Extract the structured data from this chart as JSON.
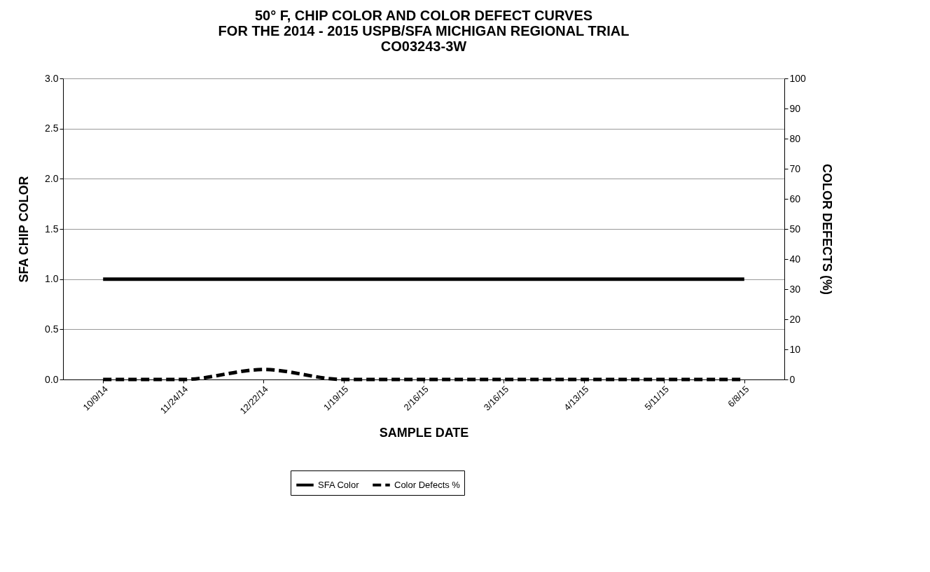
{
  "chart_data": {
    "type": "line",
    "title": "50° F, CHIP COLOR AND COLOR DEFECT CURVES\nFOR THE 2014 - 2015 USPB/SFA MICHIGAN REGIONAL TRIAL\nCO03243-3W",
    "xlabel": "SAMPLE DATE",
    "ylabel": "SFA CHIP COLOR",
    "y2label": "COLOR DEFECTS (%)",
    "categories": [
      "10/9/14",
      "11/24/14",
      "12/22/14",
      "1/19/15",
      "2/16/15",
      "3/16/15",
      "4/13/15",
      "5/11/15",
      "6/8/15"
    ],
    "series": [
      {
        "name": "SFA Color",
        "color": "#000000",
        "line_style": "solid",
        "values": [
          1.0,
          1.0,
          1.0,
          1.0,
          1.0,
          1.0,
          1.0,
          1.0,
          1.0
        ]
      },
      {
        "name": "Color Defects %",
        "color": "#000000",
        "line_style": "dashed",
        "axis": "y2",
        "values": [
          0,
          0,
          3.3,
          0,
          0,
          0,
          0,
          0,
          0
        ]
      }
    ],
    "ylim": [
      0,
      3
    ],
    "yticks": [
      {
        "value": 0,
        "label": "0.0"
      },
      {
        "value": 0.5,
        "label": "0.5"
      },
      {
        "value": 1,
        "label": "1.0"
      },
      {
        "value": 1.5,
        "label": "1.5"
      },
      {
        "value": 2,
        "label": "2.0"
      },
      {
        "value": 2.5,
        "label": "2.5"
      },
      {
        "value": 3,
        "label": "3.0"
      }
    ],
    "y2lim": [
      0,
      100
    ],
    "y2ticks": [
      0,
      10,
      20,
      30,
      40,
      50,
      60,
      70,
      80,
      90,
      100
    ],
    "grid": "y",
    "legend": "bottom"
  }
}
